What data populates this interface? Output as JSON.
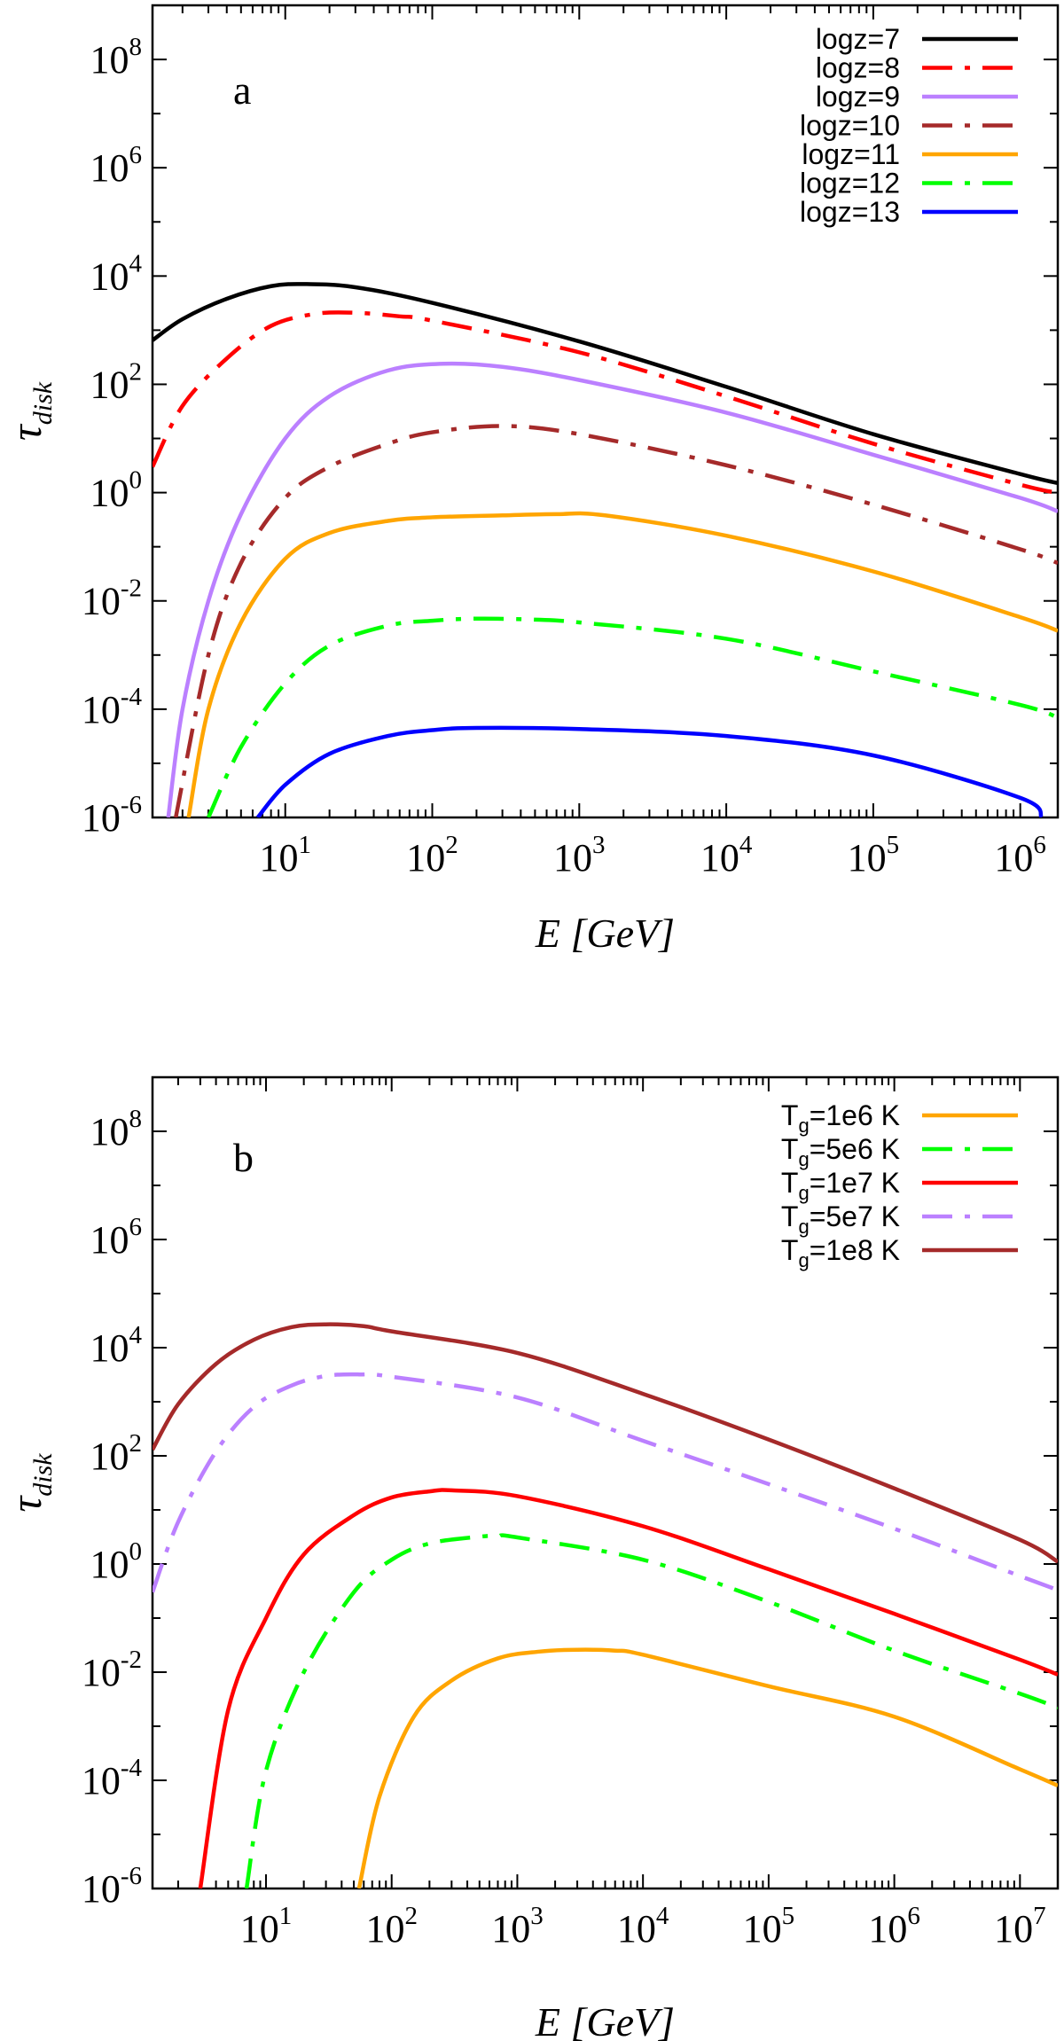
{
  "chart_data": [
    {
      "type": "line",
      "panel_label": "a",
      "xscale": "log",
      "yscale": "log",
      "xlim": [
        1.25,
        1800000
      ],
      "ylim": [
        1e-06,
        1000000000.0
      ],
      "xticks": [
        10,
        100,
        1000,
        10000,
        100000,
        1000000
      ],
      "yticks": [
        1e-06,
        0.0001,
        0.01,
        1,
        100.0,
        10000.0,
        1000000.0,
        100000000.0
      ],
      "xlabel": "E [GeV]",
      "ylabel": "τdisk",
      "legend_position": "top-right",
      "series": [
        {
          "name": "logz=7",
          "legend": "logz=7",
          "color": "#000000",
          "dash": "solid",
          "x": [
            1.25,
            2,
            4,
            8,
            14,
            30,
            100,
            1000,
            10000,
            100000,
            1000000,
            1800000
          ],
          "y": [
            650,
            1600,
            3800,
            6500,
            7100,
            6200,
            3200,
            620,
            90,
            12,
            2.2,
            1.5
          ]
        },
        {
          "name": "logz=8",
          "legend": "logz=8",
          "color": "#ff0000",
          "dash": "dashdot",
          "x": [
            1.25,
            2,
            4,
            8,
            16,
            30,
            60,
            100,
            1000,
            10000,
            100000,
            1000000,
            1800000
          ],
          "y": [
            3,
            40,
            300,
            1200,
            2000,
            2100,
            1800,
            1500,
            390,
            60,
            8,
            1.4,
            1
          ]
        },
        {
          "name": "logz=9",
          "legend": "logz=9",
          "color": "#bb80ff",
          "dash": "solid",
          "x": [
            1.6,
            2,
            3,
            5,
            10,
            20,
            50,
            120,
            300,
            1000,
            10000,
            100000,
            1000000,
            1800000
          ],
          "y": [
            1e-06,
            0.0001,
            0.01,
            0.4,
            10,
            60,
            180,
            240,
            210,
            120,
            30,
            5,
            0.8,
            0.45
          ]
        },
        {
          "name": "logz=10",
          "legend": "logz=10",
          "color": "#a52a2a",
          "dash": "dashdot",
          "x": [
            1.8,
            3,
            5,
            10,
            20,
            50,
            100,
            300,
            1000,
            10000,
            100000,
            1000000,
            1800000
          ],
          "y": [
            1e-06,
            0.001,
            0.05,
            0.8,
            3,
            8,
            13,
            17,
            12,
            3.2,
            0.6,
            0.09,
            0.05
          ]
        },
        {
          "name": "logz=11",
          "legend": "logz=11",
          "color": "#ffa500",
          "dash": "solid",
          "x": [
            2.2,
            3,
            5,
            10,
            20,
            50,
            100,
            300,
            700,
            1500,
            10000,
            100000,
            1000000,
            1800000
          ],
          "y": [
            1e-06,
            0.0001,
            0.004,
            0.06,
            0.18,
            0.3,
            0.35,
            0.38,
            0.4,
            0.38,
            0.16,
            0.035,
            0.005,
            0.0028
          ]
        },
        {
          "name": "logz=12",
          "legend": "logz=12",
          "color": "#00ff00",
          "dash": "dashdot",
          "x": [
            3,
            5,
            10,
            20,
            50,
            100,
            200,
            500,
            1000,
            10000,
            100000,
            1000000,
            1800000
          ],
          "y": [
            1e-06,
            2e-05,
            0.0003,
            0.0015,
            0.0035,
            0.0043,
            0.0047,
            0.0045,
            0.004,
            0.002,
            0.0005,
            0.00012,
            7e-05
          ]
        },
        {
          "name": "logz=13",
          "legend": "logz=13",
          "color": "#0000ff",
          "dash": "solid",
          "x": [
            6.5,
            10,
            20,
            50,
            100,
            200,
            1000,
            10000,
            100000,
            1000000,
            1400000
          ],
          "y": [
            1e-06,
            4e-06,
            1.5e-05,
            3.2e-05,
            4.1e-05,
            4.5e-05,
            4.3e-05,
            3.2e-05,
            1.4e-05,
            2.3e-06,
            1e-06
          ]
        }
      ]
    },
    {
      "type": "line",
      "panel_label": "b",
      "xscale": "log",
      "yscale": "log",
      "xlim": [
        1.25,
        20000000
      ],
      "ylim": [
        1e-06,
        1000000000.0
      ],
      "xticks": [
        10,
        100,
        1000,
        10000,
        100000,
        1000000,
        10000000
      ],
      "yticks": [
        1e-06,
        0.0001,
        0.01,
        1,
        100.0,
        10000.0,
        1000000.0,
        100000000.0
      ],
      "xlabel": "E [GeV]",
      "ylabel": "τdisk",
      "legend_position": "top-right",
      "series": [
        {
          "name": "Tg=1e6 K",
          "legend_main": "T",
          "legend_sub": "g",
          "legend_rest": "=1e6 K",
          "color": "#ffa500",
          "dash": "solid",
          "x": [
            55,
            80,
            150,
            300,
            700,
            1500,
            3000,
            6000,
            10000,
            100000,
            1000000,
            10000000,
            20000000
          ],
          "y": [
            1e-06,
            5e-05,
            0.0015,
            0.007,
            0.018,
            0.024,
            0.026,
            0.025,
            0.021,
            0.0055,
            0.0015,
            0.00016,
            8e-05
          ]
        },
        {
          "name": "Tg=5e6 K",
          "legend_main": "T",
          "legend_sub": "g",
          "legend_rest": "=5e6 K",
          "color": "#00ff00",
          "dash": "dashdot",
          "x": [
            7,
            10,
            20,
            50,
            100,
            200,
            500,
            700,
            1000,
            10000,
            100000,
            1000000,
            10000000,
            20000000
          ],
          "y": [
            1e-06,
            0.00015,
            0.01,
            0.3,
            1.2,
            2.4,
            3.2,
            3.3,
            3.1,
            1.2,
            0.2,
            0.025,
            0.004,
            0.0022
          ]
        },
        {
          "name": "Tg=1e7 K",
          "legend_main": "T",
          "legend_sub": "g",
          "legend_rest": "=1e7 K",
          "color": "#ff0000",
          "dash": "solid",
          "x": [
            3,
            5,
            10,
            20,
            50,
            100,
            200,
            300,
            1000,
            10000,
            100000,
            1000000,
            10000000,
            20000000
          ],
          "y": [
            1e-06,
            0.002,
            0.1,
            1.5,
            8,
            17,
            22,
            23,
            18,
            5,
            0.8,
            0.12,
            0.017,
            0.009
          ]
        },
        {
          "name": "Tg=5e7 K",
          "legend_main": "T",
          "legend_sub": "g",
          "legend_rest": "=5e7 K",
          "color": "#bb80ff",
          "dash": "dashdot",
          "x": [
            1.25,
            2,
            4,
            8,
            16,
            30,
            55,
            100,
            1000,
            10000,
            100000,
            1000000,
            10000000,
            20000000
          ],
          "y": [
            0.3,
            6,
            120,
            800,
            2000,
            3000,
            3200,
            2900,
            1200,
            190,
            30,
            4.5,
            0.6,
            0.33
          ]
        },
        {
          "name": "Tg=1e8 K",
          "legend_main": "T",
          "legend_sub": "g",
          "legend_rest": "=1e8 K",
          "color": "#a52a2a",
          "dash": "solid",
          "x": [
            1.25,
            2,
            4,
            8,
            16,
            30,
            60,
            100,
            1000,
            10000,
            100000,
            1000000,
            10000000,
            20000000
          ],
          "y": [
            130,
            900,
            5000,
            14000,
            24000,
            27000,
            25000,
            20000,
            8000,
            1400,
            200,
            25,
            2.8,
            1.1
          ]
        }
      ]
    }
  ]
}
